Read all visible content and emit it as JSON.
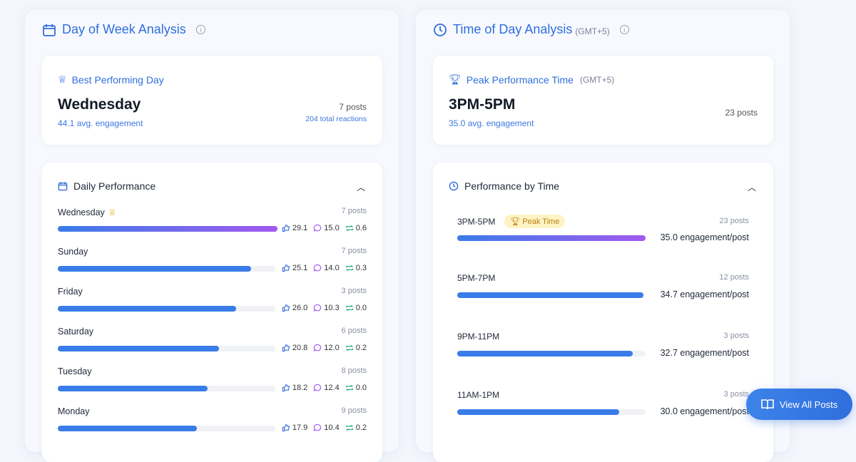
{
  "day": {
    "title": "Day of Week Analysis",
    "best": {
      "label": "Best Performing Day",
      "day": "Wednesday",
      "avg": "44.1 avg. engagement",
      "posts": "7 posts",
      "reactions": "204 total reactions"
    },
    "section": "Daily Performance",
    "rows": [
      {
        "name": "Wednesday",
        "posts": "7 posts",
        "likes": "29.1",
        "comments": "15.0",
        "shares": "0.6",
        "fill": 100,
        "best": true
      },
      {
        "name": "Sunday",
        "posts": "7 posts",
        "likes": "25.1",
        "comments": "14.0",
        "shares": "0.3",
        "fill": 89
      },
      {
        "name": "Friday",
        "posts": "3 posts",
        "likes": "26.0",
        "comments": "10.3",
        "shares": "0.0",
        "fill": 82
      },
      {
        "name": "Saturday",
        "posts": "6 posts",
        "likes": "20.8",
        "comments": "12.0",
        "shares": "0.2",
        "fill": 74
      },
      {
        "name": "Tuesday",
        "posts": "8 posts",
        "likes": "18.2",
        "comments": "12.4",
        "shares": "0.0",
        "fill": 69
      },
      {
        "name": "Monday",
        "posts": "9 posts",
        "likes": "17.9",
        "comments": "10.4",
        "shares": "0.2",
        "fill": 64
      }
    ]
  },
  "time": {
    "title": "Time of Day Analysis",
    "tz": "(GMT+5)",
    "peak": {
      "label": "Peak Performance Time",
      "tz": "(GMT+5)",
      "time": "3PM-5PM",
      "avg": "35.0 avg. engagement",
      "posts": "23 posts"
    },
    "section": "Performance by Time",
    "badge": "Peak Time",
    "rows": [
      {
        "name": "3PM-5PM",
        "posts": "23 posts",
        "eng": "35.0 engagement/post",
        "fill": 100,
        "peak": true
      },
      {
        "name": "5PM-7PM",
        "posts": "12 posts",
        "eng": "34.7 engagement/post",
        "fill": 99
      },
      {
        "name": "9PM-11PM",
        "posts": "3 posts",
        "eng": "32.7 engagement/post",
        "fill": 93
      },
      {
        "name": "11AM-1PM",
        "posts": "3 posts",
        "eng": "30.0 engagement/post",
        "fill": 86
      }
    ]
  },
  "button": "View All Posts",
  "colors": {
    "accent": "#2f6fdc",
    "bar": "#3a7ce8",
    "gradient_end": "#a259f0",
    "badge_bg": "#fdf3c4"
  }
}
